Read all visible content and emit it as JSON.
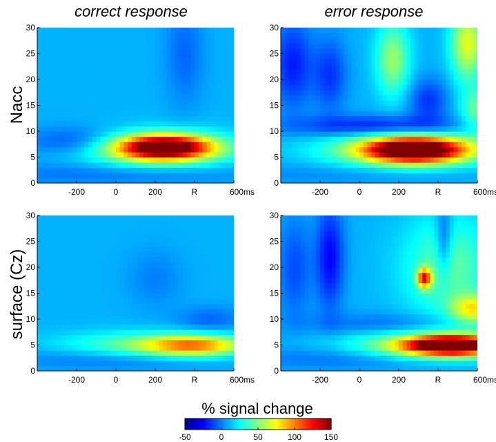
{
  "chart_data": {
    "type": "heatmap",
    "column_titles": [
      "correct response",
      "error response"
    ],
    "row_labels": [
      "Nacc",
      "surface (Cz)"
    ],
    "xlim": [
      -400,
      600
    ],
    "ylim": [
      0,
      30
    ],
    "x_tick_values": [
      -200,
      0,
      200,
      400,
      600
    ],
    "x_tick_labels": [
      "-200",
      "0",
      "200",
      "R",
      "600ms"
    ],
    "y_tick_values": [
      0,
      5,
      10,
      15,
      20,
      25,
      30
    ],
    "y_tick_labels": [
      "0",
      "5",
      "10",
      "15",
      "20",
      "25",
      "30"
    ],
    "colorbar": {
      "title": "% signal change",
      "range": [
        -50,
        150
      ],
      "tick_values": [
        -50,
        0,
        50,
        100,
        150
      ],
      "tick_labels": [
        "-50",
        "0",
        "50",
        "100",
        "150"
      ],
      "colormap": [
        "#00008f",
        "#0000ff",
        "#00ffff",
        "#ffff00",
        "#ff0000",
        "#800000"
      ]
    },
    "background_value": 10,
    "panels": [
      {
        "row": "Nacc",
        "column": "correct response",
        "blobs": [
          {
            "x": 250,
            "y": 7,
            "sx": 160,
            "sy": 1.6,
            "value": 140
          },
          {
            "x": 200,
            "y": 6.5,
            "sx": 280,
            "sy": 2.5,
            "value": 50
          },
          {
            "x": -200,
            "y": 8,
            "sx": 180,
            "sy": 2.0,
            "value": -25
          },
          {
            "x": 0,
            "y": 2,
            "sx": 500,
            "sy": 1.6,
            "value": -15
          },
          {
            "x": 350,
            "y": 25,
            "sx": 70,
            "sy": 7,
            "value": -15
          }
        ]
      },
      {
        "row": "Nacc",
        "column": "error response",
        "blobs": [
          {
            "x": 280,
            "y": 6.5,
            "sx": 170,
            "sy": 1.6,
            "value": 150
          },
          {
            "x": 250,
            "y": 6.5,
            "sx": 300,
            "sy": 2.6,
            "value": 55
          },
          {
            "x": 100,
            "y": 11,
            "sx": 300,
            "sy": 1.5,
            "value": -35
          },
          {
            "x": -340,
            "y": 23,
            "sx": 70,
            "sy": 6,
            "value": -30
          },
          {
            "x": -150,
            "y": 21,
            "sx": 60,
            "sy": 5,
            "value": -25
          },
          {
            "x": 350,
            "y": 16,
            "sx": 70,
            "sy": 3,
            "value": -25
          },
          {
            "x": 0,
            "y": 2,
            "sx": 500,
            "sy": 1.6,
            "value": -10
          },
          {
            "x": 550,
            "y": 27,
            "sx": 60,
            "sy": 5,
            "value": 60
          },
          {
            "x": 170,
            "y": 24,
            "sx": 60,
            "sy": 5,
            "value": 45
          },
          {
            "x": 600,
            "y": 14,
            "sx": 60,
            "sy": 3,
            "value": 35
          }
        ]
      },
      {
        "row": "surface (Cz)",
        "column": "correct response",
        "blobs": [
          {
            "x": 400,
            "y": 5,
            "sx": 180,
            "sy": 1.4,
            "value": 75
          },
          {
            "x": 150,
            "y": 5,
            "sx": 300,
            "sy": 1.8,
            "value": 35
          },
          {
            "x": 0,
            "y": 2.5,
            "sx": 380,
            "sy": 1.5,
            "value": -15
          },
          {
            "x": 480,
            "y": 10,
            "sx": 120,
            "sy": 1.8,
            "value": -15
          },
          {
            "x": 200,
            "y": 18,
            "sx": 100,
            "sy": 4,
            "value": -10
          }
        ]
      },
      {
        "row": "surface (Cz)",
        "column": "error response",
        "blobs": [
          {
            "x": 470,
            "y": 5,
            "sx": 160,
            "sy": 1.2,
            "value": 150
          },
          {
            "x": 400,
            "y": 5,
            "sx": 300,
            "sy": 2.0,
            "value": 60
          },
          {
            "x": 330,
            "y": 18,
            "sx": 25,
            "sy": 1.3,
            "value": 100
          },
          {
            "x": 450,
            "y": 20,
            "sx": 160,
            "sy": 7,
            "value": 35
          },
          {
            "x": 580,
            "y": 12,
            "sx": 80,
            "sy": 2,
            "value": 60
          },
          {
            "x": -150,
            "y": 22,
            "sx": 50,
            "sy": 7,
            "value": -35
          },
          {
            "x": -330,
            "y": 20,
            "sx": 60,
            "sy": 7,
            "value": -20
          },
          {
            "x": 430,
            "y": 25,
            "sx": 30,
            "sy": 5,
            "value": -30
          },
          {
            "x": 150,
            "y": 9,
            "sx": 300,
            "sy": 1.6,
            "value": -15
          },
          {
            "x": 0,
            "y": 2.5,
            "sx": 400,
            "sy": 1.5,
            "value": -15
          }
        ]
      }
    ]
  }
}
